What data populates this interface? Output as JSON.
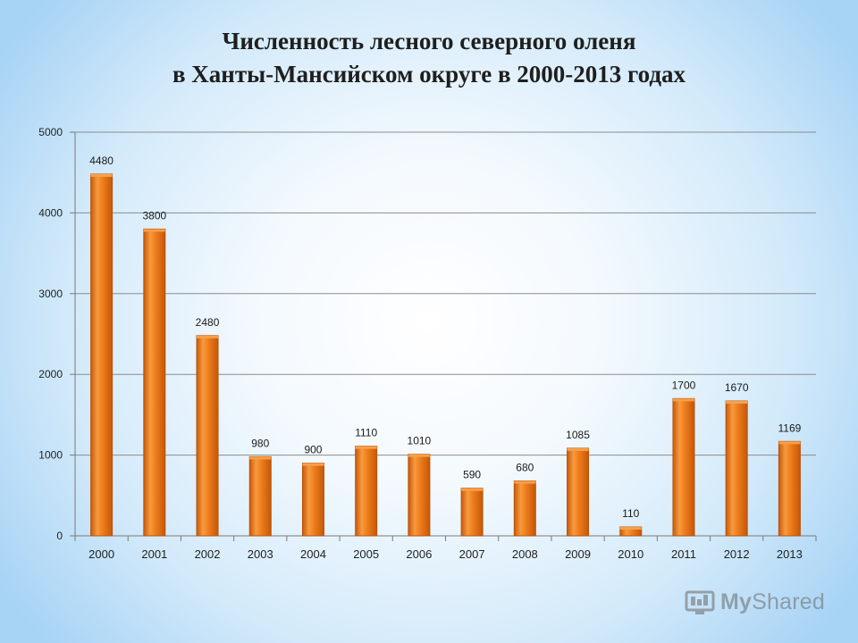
{
  "title": {
    "line1": "Численность лесного северного оленя",
    "line2": "в Ханты-Мансийском округе в 2000-2013 годах"
  },
  "chart_data": {
    "type": "bar",
    "categories": [
      "2000",
      "2001",
      "2002",
      "2003",
      "2004",
      "2005",
      "2006",
      "2007",
      "2008",
      "2009",
      "2010",
      "2011",
      "2012",
      "2013"
    ],
    "values": [
      4480,
      3800,
      2480,
      980,
      900,
      1110,
      1010,
      590,
      680,
      1085,
      110,
      1700,
      1670,
      1169
    ],
    "data_labels": [
      "4480",
      "3800",
      "2480",
      "980",
      "900",
      "1110",
      "1010",
      "590",
      "680",
      "1085",
      "110",
      "1700",
      "1670",
      "1169"
    ],
    "y_ticks": [
      0,
      1000,
      2000,
      3000,
      4000,
      5000
    ],
    "ylim": [
      0,
      5000
    ],
    "grid": true,
    "legend": "none",
    "bar_color": "#e8700f",
    "bar_highlight": "#f7a04a",
    "bar_edge": "#b8520a"
  },
  "watermark": {
    "icon": "mysharedt-logo-icon",
    "prefix": "My",
    "suffix": "Shared"
  }
}
